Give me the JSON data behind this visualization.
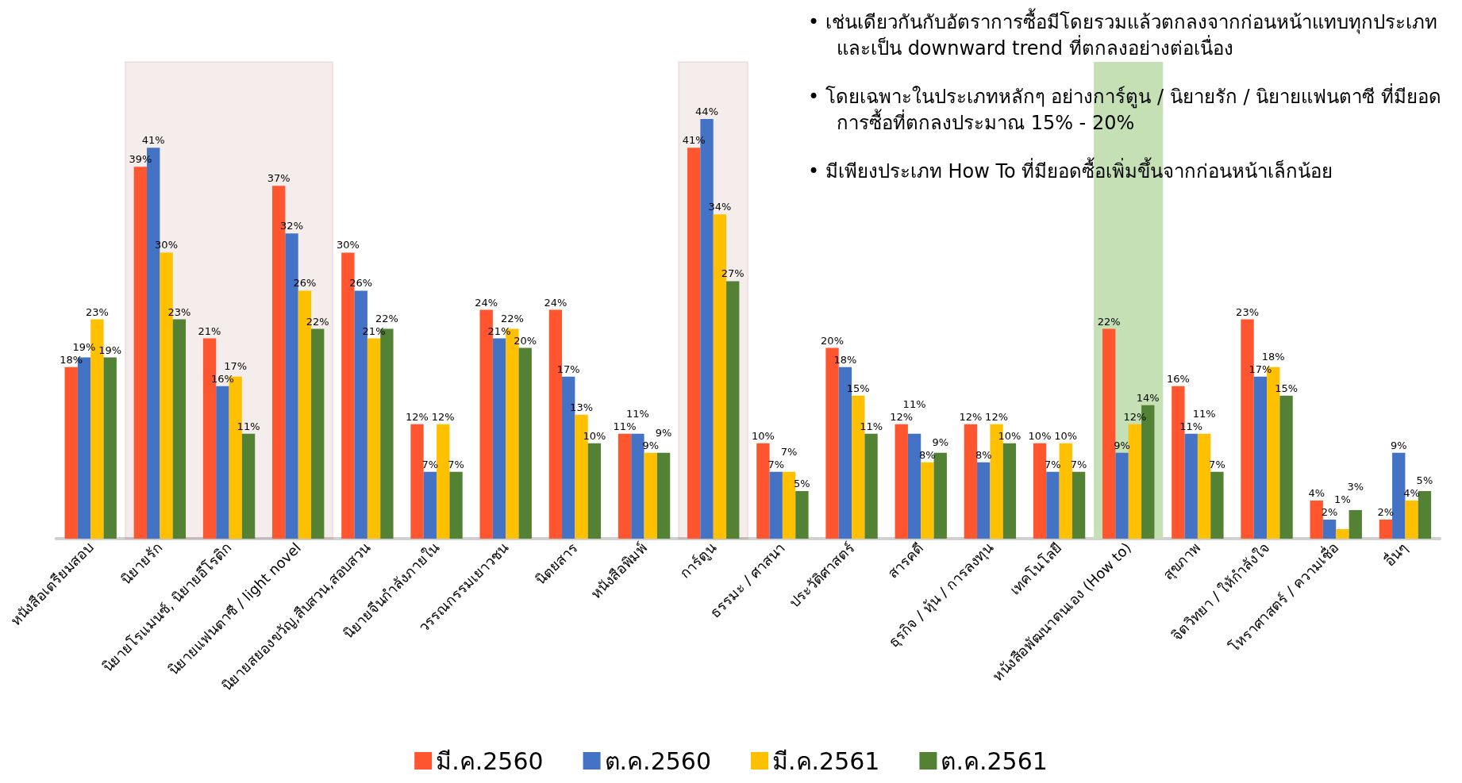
{
  "chart_data": {
    "type": "bar",
    "categories": [
      "หนังสือเตรียมสอบ",
      "นิยายรัก",
      "นิยายโรแมนซ์, นิยายอีโรติก",
      "นิยายแฟนตาซี / light novel",
      "นิยายสยองขวัญ,สืบสวน,สอบสวน",
      "นิยายจีนกำลังภายใน",
      "วรรณกรรมเยาวชน",
      "นิตยสาร",
      "หนังสือพิมพ์",
      "การ์ตูน",
      "ธรรมะ / ศาสนา",
      "ประวัติศาสตร์",
      "สารคดี",
      "ธุรกิจ / หุ้น / การลงทุน",
      "เทคโนโลยี",
      "หนังสือพัฒนาตนเอง (How to)",
      "สุขภาพ",
      "จิตวิทยา / ให้กำลังใจ",
      "โหราศาสตร์ / ความเชื่อ",
      "อื่นๆ"
    ],
    "series": [
      {
        "name": "มี.ค.2560",
        "color": "#ff5630",
        "values": [
          18,
          39,
          21,
          37,
          30,
          12,
          24,
          24,
          11,
          41,
          10,
          20,
          12,
          12,
          10,
          22,
          16,
          23,
          4,
          2
        ],
        "value_labels": [
          "18%",
          "39%",
          "21%",
          "37%",
          "30%",
          "12%",
          "24%",
          "24%",
          "11%",
          "41%",
          "10%",
          "20%",
          "12%",
          "12%",
          "10%",
          "22%",
          "16%",
          "23%",
          "4%",
          "2%"
        ]
      },
      {
        "name": "ต.ค.2560",
        "color": "#4472c4",
        "values": [
          19,
          41,
          16,
          32,
          26,
          7,
          21,
          17,
          11,
          44,
          7,
          18,
          11,
          8,
          7,
          9,
          11,
          17,
          2,
          9
        ],
        "value_labels": [
          "19%",
          "41%",
          "16%",
          "32%",
          "26%",
          "7%",
          "21%",
          "17%",
          "11%",
          "44%",
          "7%",
          "18%",
          "11%",
          "8%",
          "7%",
          "9%",
          "11%",
          "17%",
          "2%",
          "9%"
        ]
      },
      {
        "name": "มี.ค.2561",
        "color": "#ffc000",
        "values": [
          23,
          30,
          17,
          26,
          21,
          12,
          22,
          13,
          9,
          34,
          7,
          15,
          8,
          12,
          10,
          12,
          11,
          18,
          1,
          4
        ],
        "value_labels": [
          "23%",
          "30%",
          "17%",
          "26%",
          "21%",
          "12%",
          "22%",
          "13%",
          "9%",
          "34%",
          "7%",
          "15%",
          "8%",
          "12%",
          "10%",
          "12%",
          "11%",
          "18%",
          "1%",
          "4%"
        ]
      },
      {
        "name": "ต.ค.2561",
        "color": "#548235",
        "values": [
          19,
          23,
          11,
          22,
          22,
          7,
          20,
          10,
          9,
          27,
          5,
          11,
          9,
          10,
          7,
          14,
          7,
          15,
          3,
          5
        ],
        "value_labels": [
          "19%",
          "23%",
          "11%",
          "22%",
          "22%",
          "7%",
          "20%",
          "10%",
          "9%",
          "27%",
          "5%",
          "11%",
          "9%",
          "10%",
          "7%",
          "14%",
          "7%",
          "15%",
          "3%",
          "5%"
        ]
      }
    ],
    "relative": false,
    "bands": [
      {
        "axis": "x",
        "from": "นิยายรัก",
        "to": "นิยายแฟนตาซี / light novel",
        "color": "#7f1010"
      },
      {
        "axis": "x",
        "from": "การ์ตูน",
        "to": "การ์ตูน",
        "color": "#7f1010"
      },
      {
        "axis": "x",
        "from": "หนังสือพัฒนาตนเอง (How to)",
        "to": "หนังสือพัฒนาตนเอง (How to)",
        "color": "#c5e0b4"
      }
    ],
    "annotations": [
      "•  เช่นเดียวกันกับอัตราการซื้อมีโดยรวมแล้วตกลงจากก่อนหน้าแทบทุกประเภท และเป็น downward trend ที่ตกลงอย่างต่อเนื่อง",
      "•  โดยเฉพาะในประเภทหลักๆ อย่างการ์ตูน / นิยายรัก / นิยายแฟนตาซี ที่มียอดการซื้อที่ตกลงประมาณ 15% - 20%",
      "•  มีเพียงประเภท How To ที่มียอดซื้อเพิ่มขึ้นจากก่อนหน้าเล็กน้อย"
    ],
    "legend": "bottom",
    "grid": false
  }
}
